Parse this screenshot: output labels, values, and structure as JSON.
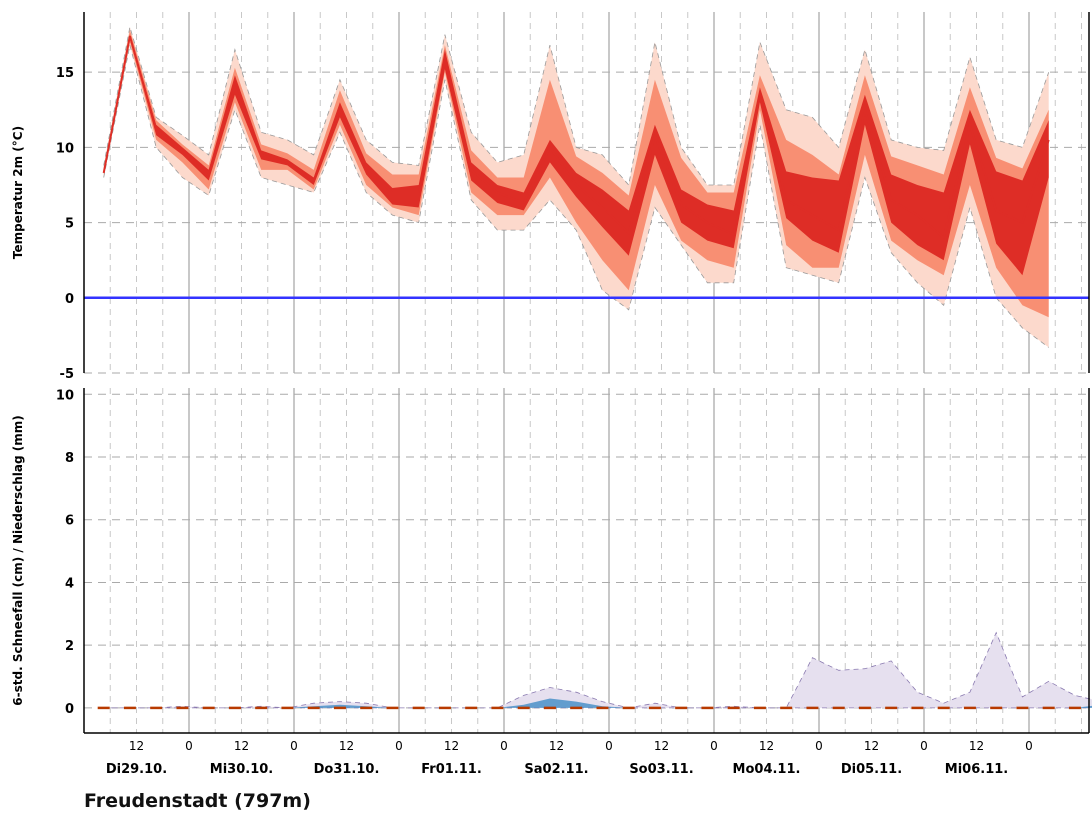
{
  "station": "Freudenstadt (797m)",
  "hour_labels": [
    "12",
    "0",
    "12",
    "0",
    "12",
    "0",
    "12",
    "0",
    "12",
    "0",
    "12",
    "0",
    "12",
    "0",
    "12",
    "0",
    "12",
    "0"
  ],
  "day_labels": [
    "Di29.10.",
    "Mi30.10.",
    "Do31.10.",
    "Fr01.11.",
    "Sa02.11.",
    "So03.11.",
    "Mo04.11.",
    "Di05.11.",
    "Mi06.11."
  ],
  "colors": {
    "spread_outer": "#fcd9cc",
    "spread_mid": "#f88f73",
    "spread_inner": "#de2d26",
    "median": "#de2d26",
    "zero_line": "#3333ff",
    "precip_outer": "#e6e0ef",
    "precip_inner": "#4a90c8",
    "snow_marker": "#b83a00",
    "grid": "#bbbbbb"
  },
  "chart_data": [
    {
      "type": "area",
      "ylabel": "Temperatur 2m (°C)",
      "ylim": [
        -5,
        19
      ],
      "yticks": [
        -5,
        0,
        5,
        10,
        15
      ],
      "x_step_hours": 6,
      "reference_line": 0,
      "outer_high": [
        8.8,
        18,
        12,
        10.8,
        9.5,
        16.5,
        11,
        10.5,
        9.5,
        14.5,
        10.5,
        9,
        8.8,
        17.5,
        11,
        9,
        9.5,
        16.8,
        10,
        9.5,
        7.5,
        17,
        10,
        7.5,
        7.5,
        17,
        12.5,
        12,
        10,
        16.5,
        10.5,
        10,
        9.8,
        16,
        10.5,
        10,
        15
      ],
      "mid_high": [
        8.5,
        17.8,
        11.8,
        10.2,
        8.8,
        15.3,
        10.2,
        9.6,
        8.5,
        13.8,
        9.6,
        8.2,
        8.2,
        16.8,
        9.8,
        8,
        8,
        14.5,
        9.4,
        8.3,
        6.8,
        14.5,
        9.3,
        7,
        7,
        14.8,
        10.5,
        9.5,
        8.2,
        14.8,
        9.4,
        8.8,
        8.2,
        14,
        9.3,
        8.6,
        12.5
      ],
      "inner_high": [
        8.5,
        17.5,
        11.5,
        10,
        8.5,
        14.8,
        9.8,
        9.2,
        8,
        13,
        9,
        7.3,
        7.5,
        16.5,
        9,
        7.5,
        7,
        10.5,
        8.3,
        7.2,
        5.8,
        11.5,
        7.2,
        6.2,
        5.8,
        14,
        8.4,
        8,
        7.8,
        13.5,
        8.2,
        7.5,
        7,
        12.5,
        8.4,
        7.8,
        11.8
      ],
      "median": [
        8.3,
        17.4,
        11.2,
        9.8,
        8.3,
        14,
        9.5,
        9,
        7.8,
        12.5,
        8.7,
        7,
        7,
        15.8,
        8.5,
        7,
        6.3,
        10,
        7.5,
        6,
        4.3,
        10.8,
        6.2,
        5,
        4.2,
        13.5,
        6.5,
        5.5,
        4.5,
        12.5,
        6.5,
        5.5,
        4,
        11.5,
        5.8,
        5,
        10.5
      ],
      "inner_low": [
        8.3,
        17.2,
        10.8,
        9.5,
        7.8,
        13.5,
        9.2,
        8.8,
        7.5,
        12,
        8.2,
        6.2,
        6,
        15.2,
        7.8,
        6.3,
        5.8,
        9,
        6.7,
        4.7,
        2.8,
        9.5,
        5,
        3.8,
        3.3,
        13,
        5.3,
        3.8,
        3,
        11.5,
        5,
        3.5,
        2.5,
        10.2,
        3.6,
        1.5,
        8
      ],
      "mid_low": [
        8.2,
        17,
        10.5,
        9,
        7.2,
        13,
        8.5,
        8.5,
        7.2,
        11.5,
        7.5,
        6,
        5.5,
        15,
        7,
        5.5,
        5.5,
        8,
        5,
        2.5,
        0.5,
        7.5,
        3.8,
        2.5,
        2,
        12.5,
        3.5,
        2,
        2,
        9.5,
        3.8,
        2.5,
        1.5,
        7.5,
        2,
        -0.5,
        -1.3
      ],
      "outer_low": [
        8,
        16.8,
        10,
        8,
        6.8,
        12.5,
        8,
        7.5,
        7,
        11,
        7,
        5.5,
        5,
        14.5,
        6.5,
        4.5,
        4.5,
        6.5,
        4.5,
        0.5,
        -0.8,
        6,
        3.5,
        1,
        1,
        11.5,
        2,
        1.5,
        1,
        8,
        3,
        1,
        -0.5,
        6,
        0,
        -2,
        -3.3
      ],
      "x_start_fraction": 0.5,
      "right_edge": "solid-line"
    },
    {
      "type": "area",
      "ylabel": "6-std. Schneefall (cm) / Niederschlag (mm)",
      "ylim": [
        -0.8,
        10.2
      ],
      "yticks": [
        0,
        2,
        4,
        6,
        8,
        10
      ],
      "x_step_hours": 6,
      "precip_spread_high": [
        0,
        0,
        0,
        0.05,
        0,
        0,
        0.05,
        0,
        0.15,
        0.2,
        0.15,
        0,
        0,
        0,
        0,
        0,
        0.4,
        0.65,
        0.5,
        0.2,
        0,
        0.15,
        0,
        0,
        0.05,
        0,
        0,
        1.6,
        1.2,
        1.25,
        1.5,
        0.5,
        0.15,
        0.5,
        2.4,
        0.35,
        0.85,
        0.4,
        0.2
      ],
      "precip_median": [
        0,
        0,
        0,
        0,
        0,
        0,
        0,
        0,
        0.05,
        0.1,
        0.05,
        0,
        0,
        0,
        0,
        0,
        0.1,
        0.3,
        0.2,
        0.05,
        0,
        0,
        0,
        0,
        0,
        0,
        0,
        0,
        0,
        0,
        0,
        0,
        0,
        0,
        0,
        0,
        0,
        0,
        0.1
      ],
      "snow_markers": [
        0,
        0,
        0,
        0,
        0,
        0,
        0,
        0,
        0,
        0,
        0,
        0,
        0,
        0,
        0,
        0,
        0,
        0,
        0,
        0,
        0,
        0,
        0,
        0,
        0,
        0,
        0,
        0,
        0,
        0,
        0,
        0,
        0,
        0,
        0,
        0,
        0,
        0
      ]
    }
  ]
}
